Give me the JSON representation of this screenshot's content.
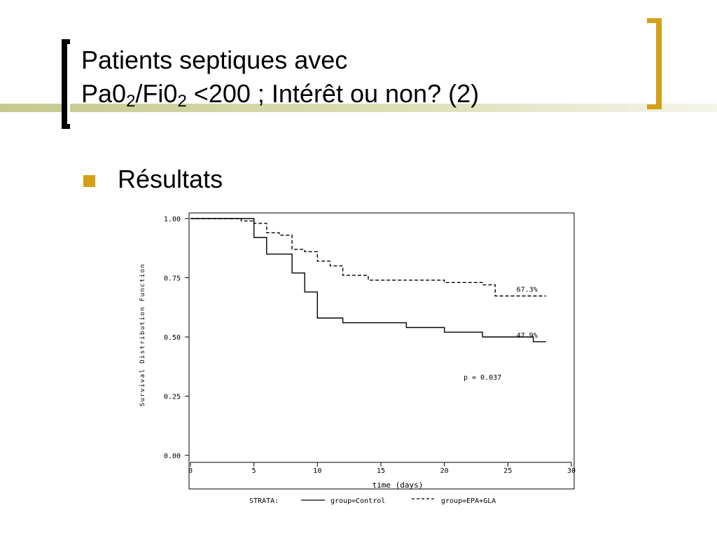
{
  "slide": {
    "title_line1": "Patients septiques avec",
    "title_line2_parts": [
      "Pa0",
      "2",
      "/Fi0",
      "2",
      " <200 ; Intérêt ou non? (2)"
    ],
    "bullet": "Résultats",
    "accent_color": "#d4a017",
    "bracket_left_color": "#000000",
    "bar_color": "#c6c98f"
  },
  "chart_data": {
    "type": "line",
    "title": "",
    "xlabel": "time (days)",
    "ylabel": "Survival Distribution Function",
    "xlim": [
      0,
      30
    ],
    "ylim": [
      0.0,
      1.0
    ],
    "x_ticks": [
      0,
      5,
      10,
      15,
      20,
      25,
      30
    ],
    "y_ticks": [
      0.0,
      0.25,
      0.5,
      0.75,
      1.0
    ],
    "x_tick_labels": [
      "0",
      "5",
      "10",
      "15",
      "20",
      "25",
      "30"
    ],
    "y_tick_labels": [
      "0.00",
      "0.25",
      "0.50",
      "0.75",
      "1.00"
    ],
    "grid": false,
    "legend_prefix": "STRATA:",
    "legend_placement": "bottom",
    "series": [
      {
        "name": "group=Control",
        "line_style": "solid",
        "step_points": [
          [
            0,
            1.0
          ],
          [
            5,
            1.0
          ],
          [
            5,
            0.92
          ],
          [
            6,
            0.92
          ],
          [
            6,
            0.85
          ],
          [
            8,
            0.85
          ],
          [
            8,
            0.77
          ],
          [
            9,
            0.77
          ],
          [
            9,
            0.69
          ],
          [
            10,
            0.69
          ],
          [
            10,
            0.58
          ],
          [
            12,
            0.58
          ],
          [
            12,
            0.56
          ],
          [
            17,
            0.56
          ],
          [
            17,
            0.54
          ],
          [
            20,
            0.54
          ],
          [
            20,
            0.52
          ],
          [
            23,
            0.52
          ],
          [
            23,
            0.5
          ],
          [
            27,
            0.5
          ],
          [
            27,
            0.48
          ],
          [
            28,
            0.48
          ]
        ],
        "end_label": "47.9%"
      },
      {
        "name": "group=EPA+GLA",
        "line_style": "dashed",
        "step_points": [
          [
            0,
            1.0
          ],
          [
            4,
            1.0
          ],
          [
            4,
            0.99
          ],
          [
            5,
            0.99
          ],
          [
            5,
            0.98
          ],
          [
            6,
            0.98
          ],
          [
            6,
            0.94
          ],
          [
            7,
            0.94
          ],
          [
            7,
            0.93
          ],
          [
            8,
            0.93
          ],
          [
            8,
            0.87
          ],
          [
            9,
            0.87
          ],
          [
            9,
            0.86
          ],
          [
            10,
            0.86
          ],
          [
            10,
            0.82
          ],
          [
            11,
            0.82
          ],
          [
            11,
            0.8
          ],
          [
            12,
            0.8
          ],
          [
            12,
            0.76
          ],
          [
            14,
            0.76
          ],
          [
            14,
            0.74
          ],
          [
            20,
            0.74
          ],
          [
            20,
            0.73
          ],
          [
            23,
            0.73
          ],
          [
            23,
            0.72
          ],
          [
            24,
            0.72
          ],
          [
            24,
            0.673
          ],
          [
            28,
            0.673
          ]
        ],
        "end_label": "67.3%"
      }
    ],
    "annotations": [
      {
        "text": "p = 0.037",
        "x": 23,
        "y": 0.32
      }
    ]
  }
}
